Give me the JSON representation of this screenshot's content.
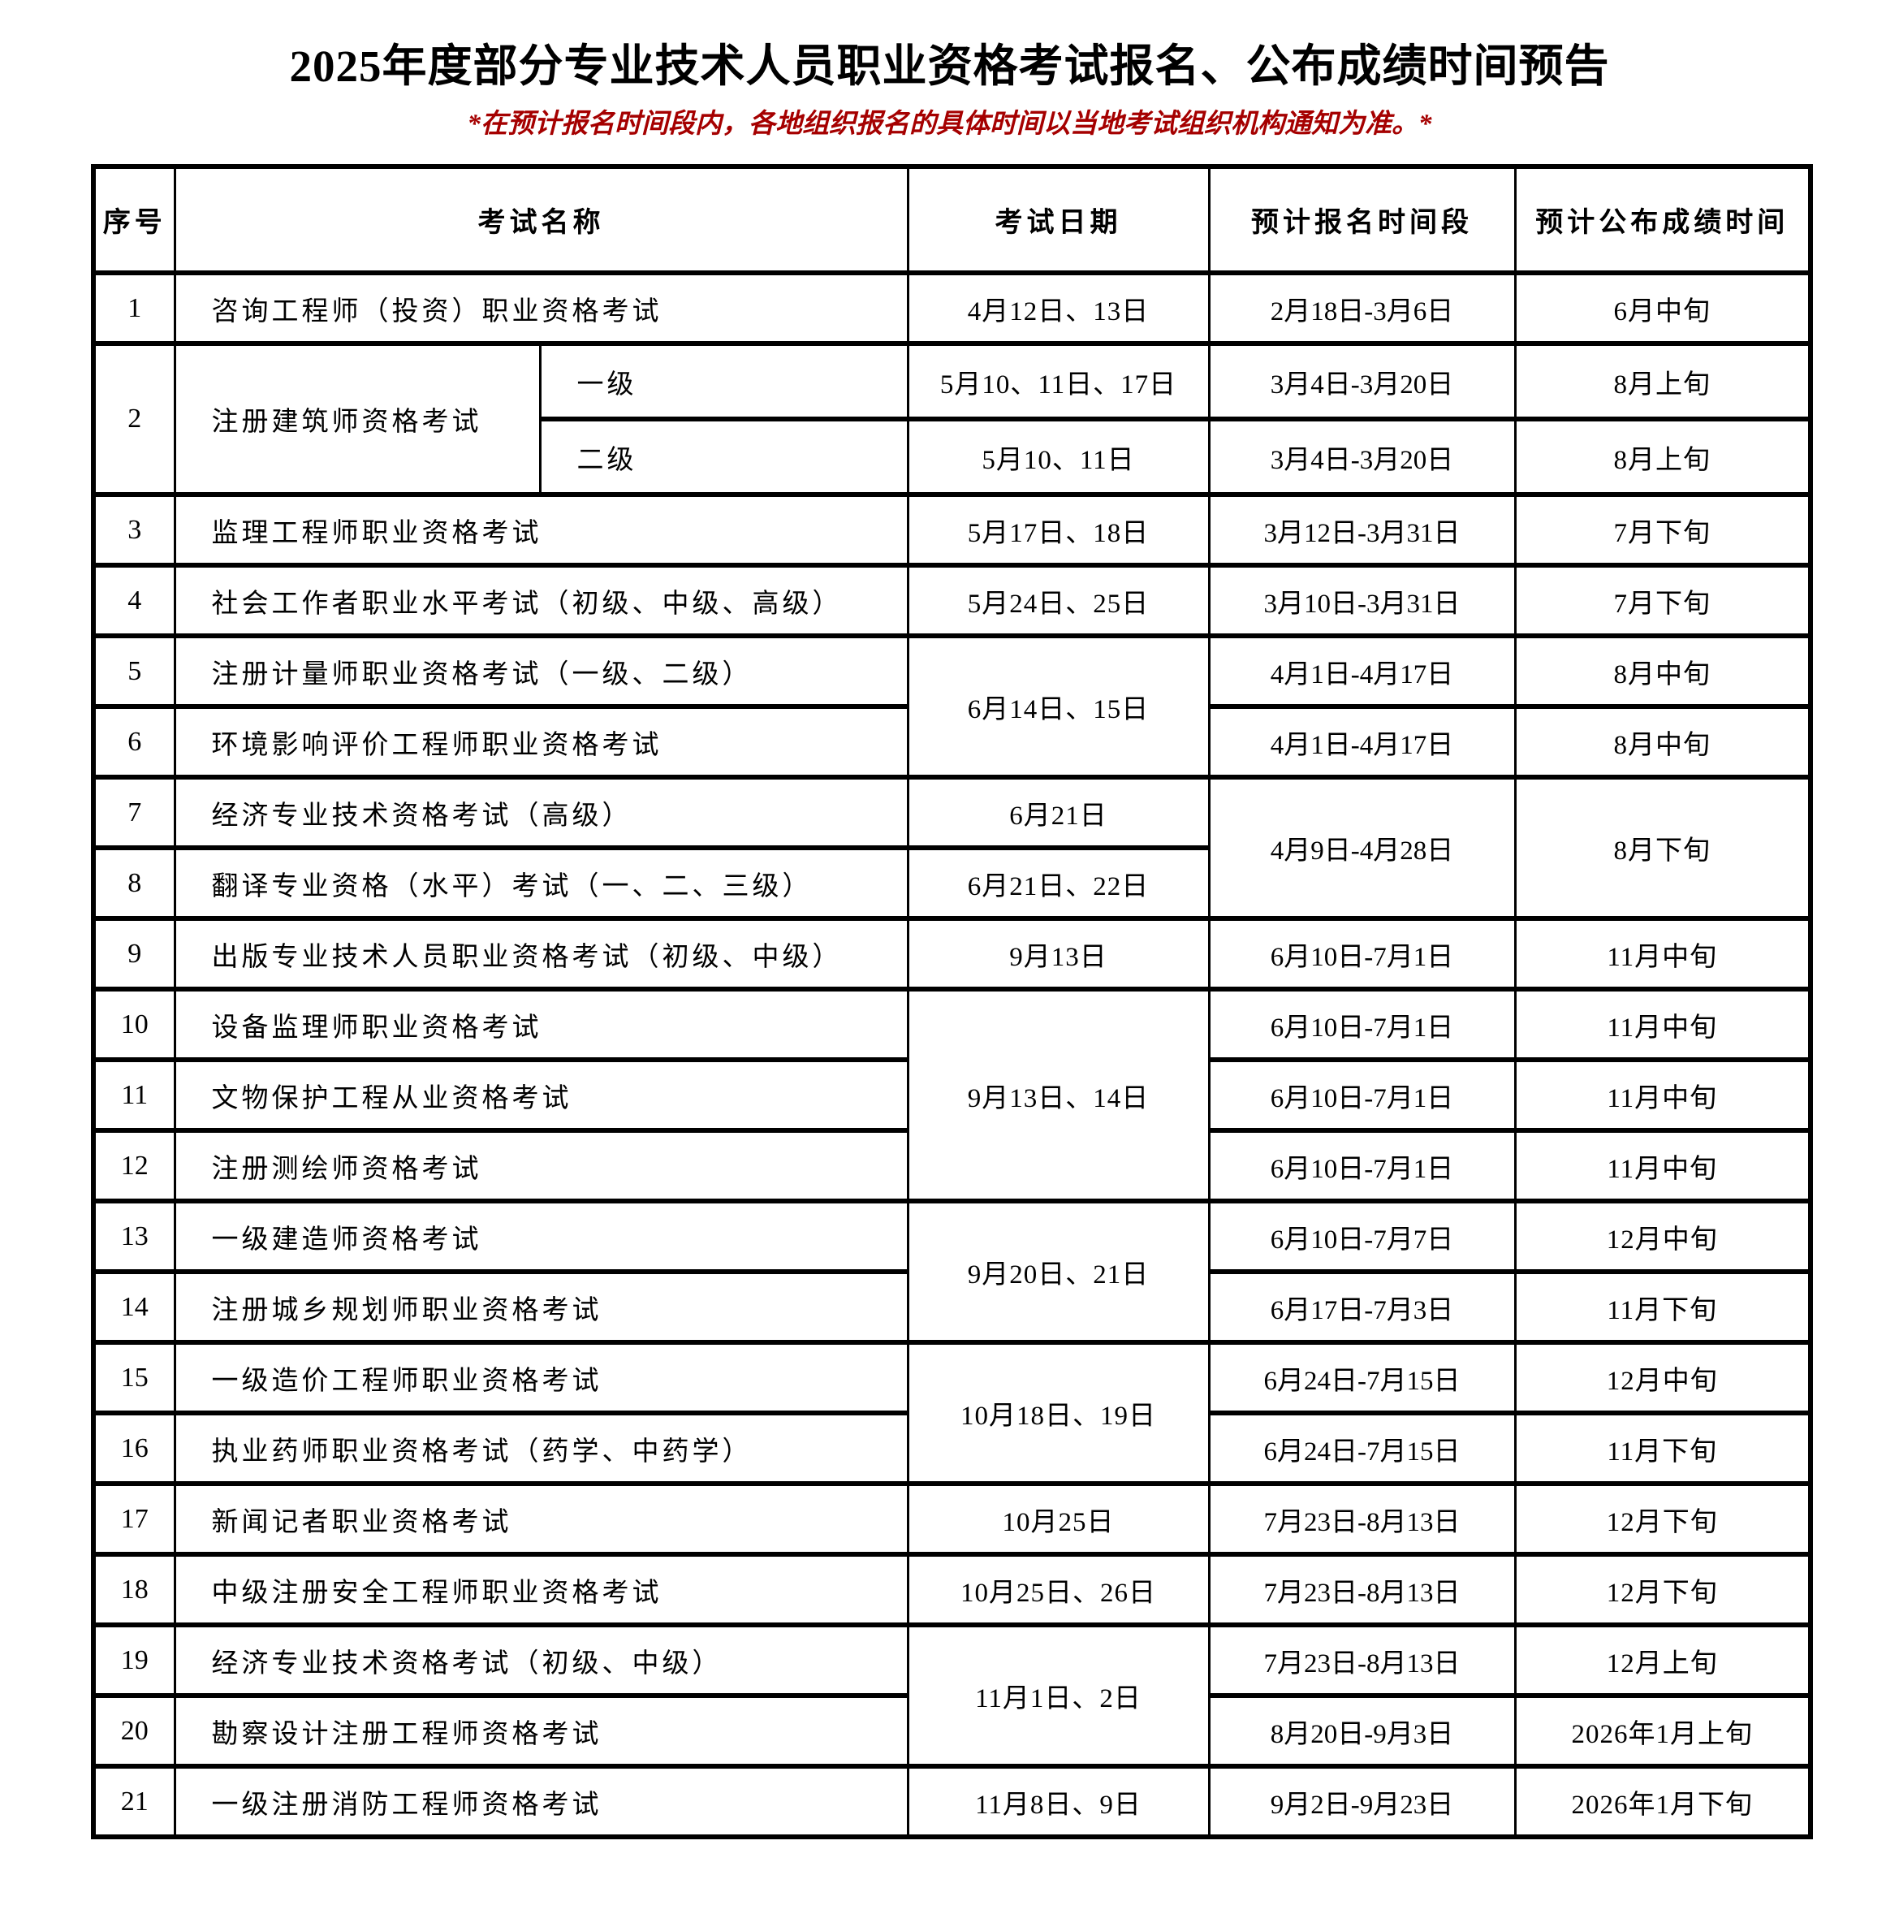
{
  "title": "2025年度部分专业技术人员职业资格考试报名、公布成绩时间预告",
  "subtitle": "*在预计报名时间段内，各地组织报名的具体时间以当地考试组织机构通知为准。*",
  "colors": {
    "subtitle_red": "#a50000",
    "border_black": "#000000",
    "background": "#ffffff"
  },
  "table": {
    "headers": [
      {
        "label": "序号"
      },
      {
        "label": "考试名称"
      },
      {
        "label": "考试日期"
      },
      {
        "label": "预计报名时间段"
      },
      {
        "label": "预计公布成绩时间"
      }
    ],
    "body": [
      {
        "cells": [
          {
            "t": "1",
            "cls": "seq",
            "name": "cell-seq"
          },
          {
            "t": "咨询工程师（投资）职业资格考试",
            "cs": 2,
            "cls": "name",
            "name": "cell-exam-name"
          },
          {
            "t": "4月12日、13日",
            "cls": "date",
            "name": "cell-exam-date"
          },
          {
            "t": "2月18日-3月6日",
            "cls": "reg",
            "name": "cell-registration-period"
          },
          {
            "t": "6月中旬",
            "cls": "result",
            "name": "cell-score-release"
          }
        ]
      },
      {
        "h": "tall",
        "cells": [
          {
            "t": "2",
            "rs": 2,
            "cls": "seq",
            "name": "cell-seq"
          },
          {
            "t": "注册建筑师资格考试",
            "rs": 2,
            "cls": "name",
            "name": "cell-exam-name"
          },
          {
            "t": "一级",
            "cls": "level",
            "name": "cell-exam-level"
          },
          {
            "t": "5月10、11日、17日",
            "cls": "date",
            "name": "cell-exam-date"
          },
          {
            "t": "3月4日-3月20日",
            "cls": "reg",
            "name": "cell-registration-period"
          },
          {
            "t": "8月上旬",
            "cls": "result",
            "name": "cell-score-release"
          }
        ]
      },
      {
        "h": "tall",
        "cells": [
          {
            "t": "二级",
            "cls": "level",
            "name": "cell-exam-level"
          },
          {
            "t": "5月10、11日",
            "cls": "date",
            "name": "cell-exam-date"
          },
          {
            "t": "3月4日-3月20日",
            "cls": "reg",
            "name": "cell-registration-period"
          },
          {
            "t": "8月上旬",
            "cls": "result",
            "name": "cell-score-release"
          }
        ]
      },
      {
        "cells": [
          {
            "t": "3",
            "cls": "seq",
            "name": "cell-seq"
          },
          {
            "t": "监理工程师职业资格考试",
            "cs": 2,
            "cls": "name",
            "name": "cell-exam-name"
          },
          {
            "t": "5月17日、18日",
            "cls": "date",
            "name": "cell-exam-date"
          },
          {
            "t": "3月12日-3月31日",
            "cls": "reg",
            "name": "cell-registration-period"
          },
          {
            "t": "7月下旬",
            "cls": "result",
            "name": "cell-score-release"
          }
        ]
      },
      {
        "cells": [
          {
            "t": "4",
            "cls": "seq",
            "name": "cell-seq"
          },
          {
            "t": "社会工作者职业水平考试（初级、中级、高级）",
            "cs": 2,
            "cls": "name",
            "name": "cell-exam-name"
          },
          {
            "t": "5月24日、25日",
            "cls": "date",
            "name": "cell-exam-date"
          },
          {
            "t": "3月10日-3月31日",
            "cls": "reg",
            "name": "cell-registration-period"
          },
          {
            "t": "7月下旬",
            "cls": "result",
            "name": "cell-score-release"
          }
        ]
      },
      {
        "cells": [
          {
            "t": "5",
            "cls": "seq",
            "name": "cell-seq"
          },
          {
            "t": "注册计量师职业资格考试（一级、二级）",
            "cs": 2,
            "cls": "name",
            "name": "cell-exam-name"
          },
          {
            "t": "6月14日、15日",
            "rs": 2,
            "cls": "date",
            "name": "cell-exam-date"
          },
          {
            "t": "4月1日-4月17日",
            "cls": "reg",
            "name": "cell-registration-period"
          },
          {
            "t": "8月中旬",
            "cls": "result",
            "name": "cell-score-release"
          }
        ]
      },
      {
        "cells": [
          {
            "t": "6",
            "cls": "seq",
            "name": "cell-seq"
          },
          {
            "t": "环境影响评价工程师职业资格考试",
            "cs": 2,
            "cls": "name",
            "name": "cell-exam-name"
          },
          {
            "t": "4月1日-4月17日",
            "cls": "reg",
            "name": "cell-registration-period"
          },
          {
            "t": "8月中旬",
            "cls": "result",
            "name": "cell-score-release"
          }
        ]
      },
      {
        "cells": [
          {
            "t": "7",
            "cls": "seq",
            "name": "cell-seq"
          },
          {
            "t": "经济专业技术资格考试（高级）",
            "cs": 2,
            "cls": "name",
            "name": "cell-exam-name"
          },
          {
            "t": "6月21日",
            "cls": "date",
            "name": "cell-exam-date"
          },
          {
            "t": "4月9日-4月28日",
            "rs": 2,
            "cls": "reg",
            "name": "cell-registration-period"
          },
          {
            "t": "8月下旬",
            "rs": 2,
            "cls": "result",
            "name": "cell-score-release"
          }
        ]
      },
      {
        "cells": [
          {
            "t": "8",
            "cls": "seq",
            "name": "cell-seq"
          },
          {
            "t": "翻译专业资格（水平）考试（一、二、三级）",
            "cs": 2,
            "cls": "name",
            "name": "cell-exam-name"
          },
          {
            "t": "6月21日、22日",
            "cls": "date",
            "name": "cell-exam-date"
          }
        ]
      },
      {
        "cells": [
          {
            "t": "9",
            "cls": "seq",
            "name": "cell-seq"
          },
          {
            "t": "出版专业技术人员职业资格考试（初级、中级）",
            "cs": 2,
            "cls": "name",
            "name": "cell-exam-name"
          },
          {
            "t": "9月13日",
            "cls": "date",
            "name": "cell-exam-date"
          },
          {
            "t": "6月10日-7月1日",
            "cls": "reg",
            "name": "cell-registration-period"
          },
          {
            "t": "11月中旬",
            "cls": "result",
            "name": "cell-score-release"
          }
        ]
      },
      {
        "cells": [
          {
            "t": "10",
            "cls": "seq",
            "name": "cell-seq"
          },
          {
            "t": "设备监理师职业资格考试",
            "cs": 2,
            "cls": "name",
            "name": "cell-exam-name"
          },
          {
            "t": "9月13日、14日",
            "rs": 3,
            "cls": "date",
            "name": "cell-exam-date"
          },
          {
            "t": "6月10日-7月1日",
            "cls": "reg",
            "name": "cell-registration-period"
          },
          {
            "t": "11月中旬",
            "cls": "result",
            "name": "cell-score-release"
          }
        ]
      },
      {
        "cells": [
          {
            "t": "11",
            "cls": "seq",
            "name": "cell-seq"
          },
          {
            "t": "文物保护工程从业资格考试",
            "cs": 2,
            "cls": "name",
            "name": "cell-exam-name"
          },
          {
            "t": "6月10日-7月1日",
            "cls": "reg",
            "name": "cell-registration-period"
          },
          {
            "t": "11月中旬",
            "cls": "result",
            "name": "cell-score-release"
          }
        ]
      },
      {
        "cells": [
          {
            "t": "12",
            "cls": "seq",
            "name": "cell-seq"
          },
          {
            "t": "注册测绘师资格考试",
            "cs": 2,
            "cls": "name",
            "name": "cell-exam-name"
          },
          {
            "t": "6月10日-7月1日",
            "cls": "reg",
            "name": "cell-registration-period"
          },
          {
            "t": "11月中旬",
            "cls": "result",
            "name": "cell-score-release"
          }
        ]
      },
      {
        "cells": [
          {
            "t": "13",
            "cls": "seq",
            "name": "cell-seq"
          },
          {
            "t": "一级建造师资格考试",
            "cs": 2,
            "cls": "name",
            "name": "cell-exam-name"
          },
          {
            "t": "9月20日、21日",
            "rs": 2,
            "cls": "date",
            "name": "cell-exam-date"
          },
          {
            "t": "6月10日-7月7日",
            "cls": "reg",
            "name": "cell-registration-period"
          },
          {
            "t": "12月中旬",
            "cls": "result",
            "name": "cell-score-release"
          }
        ]
      },
      {
        "cells": [
          {
            "t": "14",
            "cls": "seq",
            "name": "cell-seq"
          },
          {
            "t": "注册城乡规划师职业资格考试",
            "cs": 2,
            "cls": "name",
            "name": "cell-exam-name"
          },
          {
            "t": "6月17日-7月3日",
            "cls": "reg",
            "name": "cell-registration-period"
          },
          {
            "t": "11月下旬",
            "cls": "result",
            "name": "cell-score-release"
          }
        ]
      },
      {
        "cells": [
          {
            "t": "15",
            "cls": "seq",
            "name": "cell-seq"
          },
          {
            "t": "一级造价工程师职业资格考试",
            "cs": 2,
            "cls": "name",
            "name": "cell-exam-name"
          },
          {
            "t": "10月18日、19日",
            "rs": 2,
            "cls": "date",
            "name": "cell-exam-date"
          },
          {
            "t": "6月24日-7月15日",
            "cls": "reg",
            "name": "cell-registration-period"
          },
          {
            "t": "12月中旬",
            "cls": "result",
            "name": "cell-score-release"
          }
        ]
      },
      {
        "cells": [
          {
            "t": "16",
            "cls": "seq",
            "name": "cell-seq"
          },
          {
            "t": "执业药师职业资格考试（药学、中药学）",
            "cs": 2,
            "cls": "name",
            "name": "cell-exam-name"
          },
          {
            "t": "6月24日-7月15日",
            "cls": "reg",
            "name": "cell-registration-period"
          },
          {
            "t": "11月下旬",
            "cls": "result",
            "name": "cell-score-release"
          }
        ]
      },
      {
        "cells": [
          {
            "t": "17",
            "cls": "seq",
            "name": "cell-seq"
          },
          {
            "t": "新闻记者职业资格考试",
            "cs": 2,
            "cls": "name",
            "name": "cell-exam-name"
          },
          {
            "t": "10月25日",
            "cls": "date",
            "name": "cell-exam-date"
          },
          {
            "t": "7月23日-8月13日",
            "cls": "reg",
            "name": "cell-registration-period"
          },
          {
            "t": "12月下旬",
            "cls": "result",
            "name": "cell-score-release"
          }
        ]
      },
      {
        "cells": [
          {
            "t": "18",
            "cls": "seq",
            "name": "cell-seq"
          },
          {
            "t": "中级注册安全工程师职业资格考试",
            "cs": 2,
            "cls": "name",
            "name": "cell-exam-name"
          },
          {
            "t": "10月25日、26日",
            "cls": "date",
            "name": "cell-exam-date"
          },
          {
            "t": "7月23日-8月13日",
            "cls": "reg",
            "name": "cell-registration-period"
          },
          {
            "t": "12月下旬",
            "cls": "result",
            "name": "cell-score-release"
          }
        ]
      },
      {
        "cells": [
          {
            "t": "19",
            "cls": "seq",
            "name": "cell-seq"
          },
          {
            "t": "经济专业技术资格考试（初级、中级）",
            "cs": 2,
            "cls": "name",
            "name": "cell-exam-name"
          },
          {
            "t": "11月1日、2日",
            "rs": 2,
            "cls": "date",
            "name": "cell-exam-date"
          },
          {
            "t": "7月23日-8月13日",
            "cls": "reg",
            "name": "cell-registration-period"
          },
          {
            "t": "12月上旬",
            "cls": "result",
            "name": "cell-score-release"
          }
        ]
      },
      {
        "cells": [
          {
            "t": "20",
            "cls": "seq",
            "name": "cell-seq"
          },
          {
            "t": "勘察设计注册工程师资格考试",
            "cs": 2,
            "cls": "name",
            "name": "cell-exam-name"
          },
          {
            "t": "8月20日-9月3日",
            "cls": "reg",
            "name": "cell-registration-period"
          },
          {
            "t": "2026年1月上旬",
            "cls": "result",
            "name": "cell-score-release"
          }
        ]
      },
      {
        "cells": [
          {
            "t": "21",
            "cls": "seq",
            "name": "cell-seq"
          },
          {
            "t": "一级注册消防工程师资格考试",
            "cs": 2,
            "cls": "name",
            "name": "cell-exam-name"
          },
          {
            "t": "11月8日、9日",
            "cls": "date",
            "name": "cell-exam-date"
          },
          {
            "t": "9月2日-9月23日",
            "cls": "reg",
            "name": "cell-registration-period"
          },
          {
            "t": "2026年1月下旬",
            "cls": "result",
            "name": "cell-score-release"
          }
        ]
      }
    ]
  }
}
